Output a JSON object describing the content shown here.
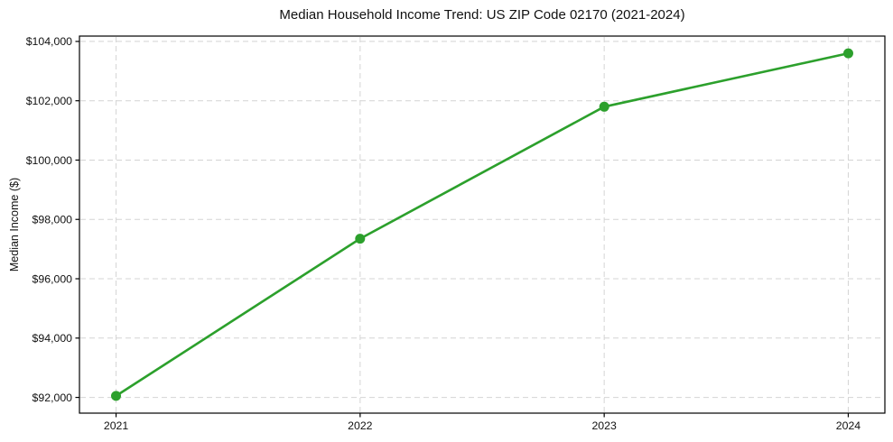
{
  "chart_data": {
    "type": "line",
    "title": "Median Household Income Trend: US ZIP Code 02170 (2021-2024)",
    "xlabel": "",
    "ylabel": "Median Income ($)",
    "x": [
      2021,
      2022,
      2023,
      2024
    ],
    "categories": [
      "2021",
      "2022",
      "2023",
      "2024"
    ],
    "series": [
      {
        "name": "Median Household Income",
        "values": [
          92050,
          97350,
          101800,
          103600
        ]
      }
    ],
    "xlim": [
      2020.85,
      2024.15
    ],
    "ylim": [
      91470,
      104180
    ],
    "xticks": [
      2021,
      2022,
      2023,
      2024
    ],
    "xtick_labels": [
      "2021",
      "2022",
      "2023",
      "2024"
    ],
    "yticks": [
      92000,
      94000,
      96000,
      98000,
      100000,
      102000,
      104000
    ],
    "ytick_labels": [
      "$92,000",
      "$94,000",
      "$96,000",
      "$98,000",
      "$100,000",
      "$102,000",
      "$104,000"
    ],
    "grid": true,
    "grid_style": "dashed",
    "legend": "none",
    "marker": "circle",
    "marker_radius": 5.5,
    "line_width": 2.6,
    "colors": {
      "line": "#2ca02c",
      "marker": "#2ca02c",
      "grid": "#d4d4d4",
      "spine": "#000000",
      "text": "#111111",
      "background": "#ffffff"
    }
  }
}
